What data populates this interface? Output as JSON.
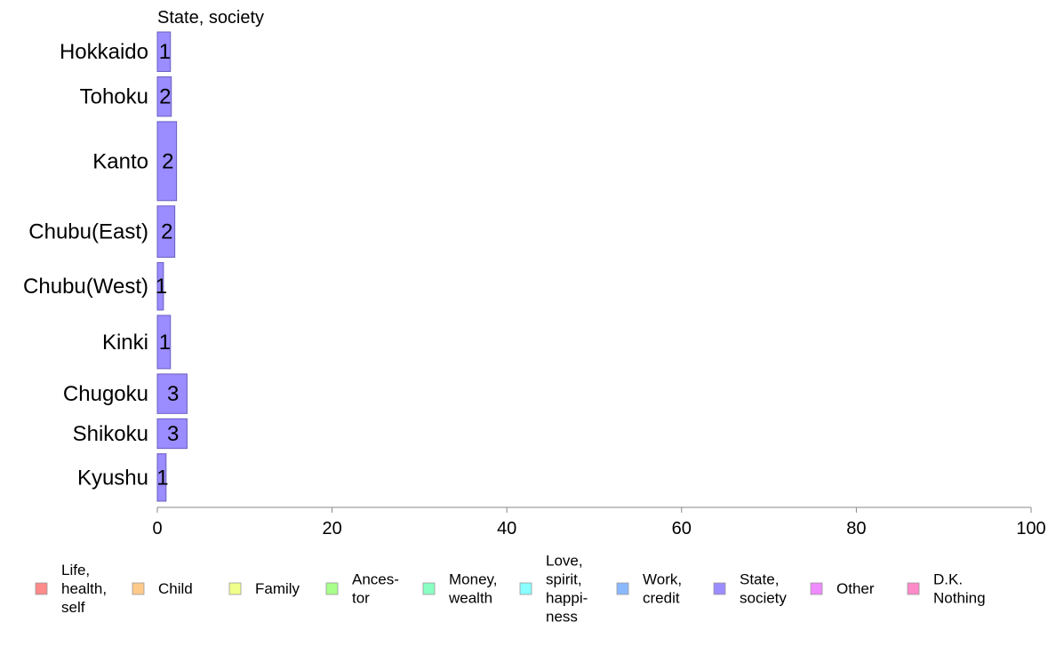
{
  "chart_data": {
    "type": "bar",
    "orientation": "horizontal",
    "panel_title": "State, society",
    "categories": [
      "Hokkaido",
      "Tohoku",
      "Kanto",
      "Chubu(East)",
      "Chubu(West)",
      "Kinki",
      "Chugoku",
      "Shikoku",
      "Kyushu"
    ],
    "series": [
      {
        "name": "State, society",
        "color": "#9b8cff",
        "values": [
          1.5,
          1.6,
          2.2,
          2.0,
          0.7,
          1.5,
          3.4,
          3.4,
          1.0
        ],
        "labels": [
          "1",
          "2",
          "2",
          "2",
          "1",
          "1",
          "3",
          "3",
          "1"
        ]
      }
    ],
    "row_weights": [
      1,
      1,
      2,
      1.3,
      1.2,
      1.35,
      1.0,
      0.75,
      1.2
    ],
    "xlim": [
      0,
      100
    ],
    "xticks": [
      "0",
      "20",
      "40",
      "60",
      "80",
      "100"
    ],
    "grid": false,
    "legend": {
      "position": "bottom",
      "items": [
        {
          "label": "Life,\nhealth,\nself",
          "color": "#ff8a8a"
        },
        {
          "label": "Child",
          "color": "#ffc98a"
        },
        {
          "label": "Family",
          "color": "#f0ff8a"
        },
        {
          "label": "Ances-\ntor",
          "color": "#a8ff8a"
        },
        {
          "label": "Money,\nwealth",
          "color": "#8affc2"
        },
        {
          "label": "Love,\nspirit,\nhappi-\nness",
          "color": "#8affff"
        },
        {
          "label": "Work,\ncredit",
          "color": "#8ab8ff"
        },
        {
          "label": "State,\nsociety",
          "color": "#9b8cff"
        },
        {
          "label": "Other",
          "color": "#f08aff"
        },
        {
          "label": "D.K.\nNothing",
          "color": "#ff8ac8"
        }
      ]
    }
  }
}
